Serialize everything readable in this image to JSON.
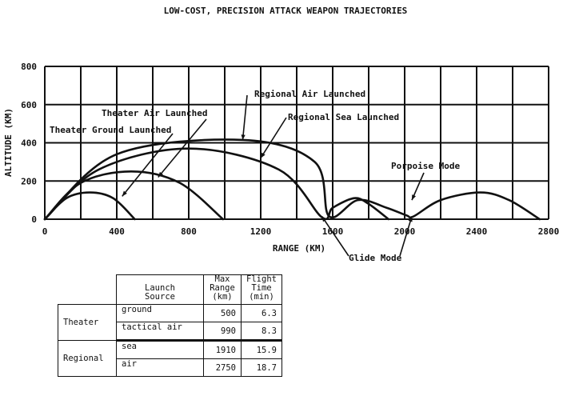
{
  "chart_data": {
    "type": "line",
    "title": "LOW-COST, PRECISION ATTACK WEAPON TRAJECTORIES",
    "xlabel": "RANGE (KM)",
    "ylabel": "ALTITUDE (KM)",
    "xlim": [
      0,
      2800
    ],
    "ylim": [
      0,
      800
    ],
    "xticks": [
      0,
      400,
      800,
      1200,
      1600,
      2000,
      2400,
      2800
    ],
    "yticks": [
      0,
      200,
      400,
      600,
      800
    ],
    "x_gridlines": [
      0,
      200,
      400,
      600,
      800,
      1000,
      1200,
      1400,
      1600,
      1800,
      2000,
      2200,
      2400,
      2600,
      2800
    ],
    "y_gridlines": [
      0,
      200,
      400,
      600,
      800
    ],
    "grid": true,
    "series": [
      {
        "name": "Theater Ground Launched",
        "x": [
          0,
          120,
          250,
          380,
          500
        ],
        "y": [
          0,
          110,
          140,
          110,
          0
        ]
      },
      {
        "name": "Theater Air Launched",
        "x": [
          0,
          200,
          480,
          750,
          990
        ],
        "y": [
          0,
          190,
          250,
          190,
          0
        ]
      },
      {
        "name": "Regional Sea Launched",
        "x": [
          0,
          300,
          800,
          1300,
          1540,
          1600,
          1720,
          1800,
          1910
        ],
        "y": [
          0,
          260,
          370,
          260,
          10,
          60,
          110,
          80,
          0
        ]
      },
      {
        "name": "Regional Air Launched",
        "x": [
          0,
          400,
          1100,
          1500,
          1580,
          1740,
          1900,
          2010,
          2050,
          2200,
          2420,
          2580,
          2750
        ],
        "y": [
          0,
          340,
          415,
          300,
          15,
          100,
          60,
          20,
          15,
          100,
          140,
          100,
          0
        ]
      }
    ],
    "annotations": [
      {
        "text": "Regional Air Launched",
        "target": [
          1100,
          415
        ]
      },
      {
        "text": "Regional Sea Launched",
        "target": [
          1200,
          320
        ]
      },
      {
        "text": "Theater Air Launched",
        "target": [
          630,
          220
        ]
      },
      {
        "text": "Theater Ground Launched",
        "target": [
          430,
          120
        ]
      },
      {
        "text": "Porpoise Mode",
        "target": [
          2040,
          100
        ]
      },
      {
        "text": "Glide Mode",
        "target": [
          1540,
          15
        ]
      }
    ]
  },
  "table": {
    "headers": {
      "source": [
        "Launch",
        "Source"
      ],
      "range": [
        "Max",
        "Range",
        "(km)"
      ],
      "time": [
        "Flight",
        "Time",
        "(min)"
      ]
    },
    "groups": [
      {
        "name": "Theater",
        "rows": [
          {
            "source": "ground",
            "range": "500",
            "time": "6.3"
          },
          {
            "source": "tactical air",
            "range": "990",
            "time": "8.3"
          }
        ]
      },
      {
        "name": "Regional",
        "rows": [
          {
            "source": "sea",
            "range": "1910",
            "time": "15.9"
          },
          {
            "source": "air",
            "range": "2750",
            "time": "18.7"
          }
        ]
      }
    ]
  }
}
